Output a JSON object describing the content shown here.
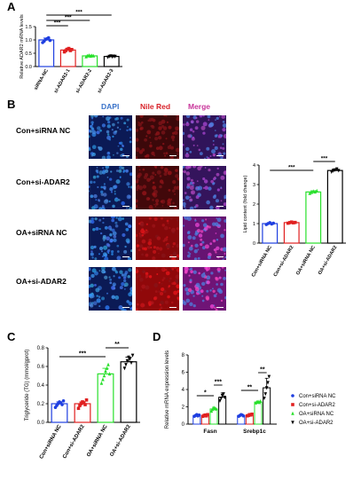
{
  "panels": {
    "A": "A",
    "B": "B",
    "C": "C",
    "D": "D"
  },
  "panel_b": {
    "columns": [
      "DAPI",
      "Nile Red",
      "Merge"
    ],
    "column_colors": [
      "#3a73c9",
      "#d8232a",
      "#c8359a"
    ],
    "rows": [
      "Con+siRNA NC",
      "Con+si-ADAR2",
      "OA+siRNA NC",
      "OA+si-ADAR2"
    ],
    "red_intensity": [
      0.25,
      0.3,
      0.85,
      0.95
    ]
  },
  "colors": {
    "blue": "#1f3fe0",
    "red": "#e02020",
    "green": "#29e02c",
    "black": "#000000"
  },
  "chart_data": [
    {
      "id": "A",
      "type": "bar",
      "ylabel": "Relative ADAR2 mRNA levels",
      "categories": [
        "siRNA-NC",
        "si-ADAR2-1",
        "si-ADAR2-2",
        "si-ADAR2-3"
      ],
      "values": [
        1.0,
        0.62,
        0.4,
        0.38
      ],
      "errors": [
        0.07,
        0.06,
        0.03,
        0.03
      ],
      "points": [
        [
          0.9,
          0.95,
          1.02,
          1.05,
          1.08,
          0.98
        ],
        [
          0.55,
          0.6,
          0.65,
          0.68,
          0.6,
          0.64
        ],
        [
          0.37,
          0.4,
          0.42,
          0.39,
          0.41,
          0.4
        ],
        [
          0.35,
          0.38,
          0.4,
          0.37,
          0.39,
          0.38
        ]
      ],
      "ylim": [
        0,
        1.5
      ],
      "yticks": [
        "0.0",
        "0.5",
        "1.0",
        "1.5"
      ],
      "sig": [
        {
          "label": "***",
          "from": 0,
          "to": 1
        },
        {
          "label": "***",
          "from": 0,
          "to": 2
        },
        {
          "label": "***",
          "from": 0,
          "to": 3
        }
      ]
    },
    {
      "id": "B",
      "type": "bar",
      "ylabel": "Lipid content (fold change)",
      "categories": [
        "Con+siRNA NC",
        "Con+si-ADAR2",
        "OA+siRNA NC",
        "OA+si-ADAR2"
      ],
      "values": [
        1.0,
        1.05,
        2.62,
        3.72
      ],
      "errors": [
        0.05,
        0.05,
        0.06,
        0.08
      ],
      "points": [
        [
          0.95,
          1.0,
          1.05,
          0.98,
          1.02
        ],
        [
          1.02,
          1.05,
          1.08,
          1.04,
          1.06
        ],
        [
          2.55,
          2.6,
          2.65,
          2.62,
          2.68
        ],
        [
          3.65,
          3.7,
          3.75,
          3.8,
          3.72
        ]
      ],
      "ylim": [
        0,
        4
      ],
      "yticks": [
        "0",
        "1",
        "2",
        "3",
        "4"
      ],
      "sig": [
        {
          "label": "***",
          "from": 0,
          "to": 2
        },
        {
          "label": "***",
          "from": 2,
          "to": 3
        }
      ]
    },
    {
      "id": "C",
      "type": "bar",
      "ylabel": "Triglyceride (TG) (mmol/gprot)",
      "categories": [
        "Con+siRNA NC",
        "Con+si-ADAR2",
        "OA+siRNA NC",
        "OA+si-ADAR2"
      ],
      "values": [
        0.2,
        0.2,
        0.52,
        0.65
      ],
      "errors": [
        0.02,
        0.02,
        0.06,
        0.05
      ],
      "points": [
        [
          0.16,
          0.18,
          0.2,
          0.22,
          0.21,
          0.19,
          0.23
        ],
        [
          0.15,
          0.18,
          0.2,
          0.22,
          0.21,
          0.19,
          0.24
        ],
        [
          0.42,
          0.46,
          0.5,
          0.55,
          0.58,
          0.62,
          0.52
        ],
        [
          0.58,
          0.62,
          0.66,
          0.7,
          0.68,
          0.64,
          0.72
        ]
      ],
      "ylim": [
        0,
        0.8
      ],
      "yticks": [
        "0.0",
        "0.2",
        "0.4",
        "0.6",
        "0.8"
      ],
      "sig": [
        {
          "label": "***",
          "from": 0,
          "to": 2
        },
        {
          "label": "**",
          "from": 2,
          "to": 3
        }
      ]
    },
    {
      "id": "D",
      "type": "bar",
      "ylabel": "Relative mRNA expression levels",
      "groups": [
        "Fasn",
        "Srebp1c"
      ],
      "series": [
        {
          "name": "Con+siRNA NC",
          "marker": "circle",
          "values": [
            1.0,
            1.0
          ],
          "errors": [
            0.08,
            0.08
          ],
          "points": [
            [
              0.9,
              1.0,
              1.1,
              0.95,
              1.05
            ],
            [
              0.9,
              1.0,
              1.1,
              1.05,
              0.95
            ]
          ]
        },
        {
          "name": "Con+si-ADAR2",
          "marker": "square",
          "values": [
            1.0,
            1.05
          ],
          "errors": [
            0.06,
            0.08
          ],
          "points": [
            [
              0.9,
              1.0,
              1.05,
              0.95,
              1.1
            ],
            [
              0.95,
              1.0,
              1.1,
              1.05,
              1.15
            ]
          ]
        },
        {
          "name": "OA+siRNA NC",
          "marker": "triangle",
          "values": [
            1.75,
            2.55
          ],
          "errors": [
            0.2,
            0.1
          ],
          "points": [
            [
              1.5,
              1.7,
              1.9,
              1.8,
              1.75
            ],
            [
              2.45,
              2.55,
              2.6,
              2.5,
              2.65
            ]
          ]
        },
        {
          "name": "OA+si-ADAR2",
          "marker": "triangle-down",
          "values": [
            3.1,
            4.2
          ],
          "errors": [
            0.5,
            1.1
          ],
          "points": [
            [
              2.7,
              3.0,
              3.3,
              3.5,
              3.1
            ],
            [
              3.0,
              3.5,
              4.2,
              4.8,
              5.5
            ]
          ]
        }
      ],
      "ylim": [
        0,
        8
      ],
      "yticks": [
        "0",
        "2",
        "4",
        "6",
        "8"
      ],
      "sig": [
        {
          "label": "*",
          "group": 0,
          "from": 0,
          "to": 2
        },
        {
          "label": "***",
          "group": 0,
          "from": 2,
          "to": 3
        },
        {
          "label": "**",
          "group": 1,
          "from": 0,
          "to": 2
        },
        {
          "label": "**",
          "group": 1,
          "from": 2,
          "to": 3
        }
      ],
      "legend": "right"
    }
  ]
}
